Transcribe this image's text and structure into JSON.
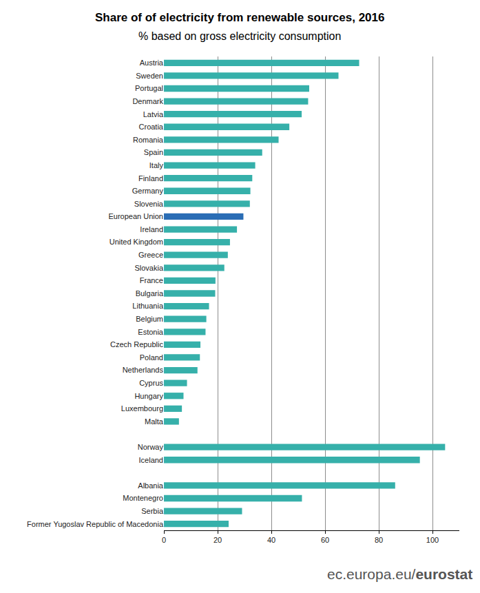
{
  "chart_data": {
    "type": "bar",
    "orientation": "horizontal",
    "title": "Share of of electricity from renewable sources, 2016",
    "subtitle": "% based on gross electricity consumption",
    "source": "ec.europa.eu/eurostat",
    "categories": [
      "Austria",
      "Sweden",
      "Portugal",
      "Denmark",
      "Latvia",
      "Croatia",
      "Romania",
      "Spain",
      "Italy",
      "Finland",
      "Germany",
      "Slovenia",
      "European Union",
      "Ireland",
      "United Kingdom",
      "Greece",
      "Slovakia",
      "France",
      "Bulgaria",
      "Lithuania",
      "Belgium",
      "Estonia",
      "Czech Republic",
      "Poland",
      "Netherlands",
      "Cyprus",
      "Hungary",
      "Luxembourg",
      "Malta",
      null,
      "Norway",
      "Iceland",
      null,
      "Albania",
      "Montenegro",
      "Serbia",
      "Former Yugoslav Republic of Macedonia"
    ],
    "values": [
      72.7,
      65.0,
      54.1,
      53.7,
      51.3,
      46.7,
      42.7,
      36.6,
      34.0,
      32.9,
      32.2,
      32.0,
      29.6,
      27.2,
      24.6,
      23.8,
      22.5,
      19.2,
      19.1,
      16.8,
      15.8,
      15.5,
      13.6,
      13.4,
      12.5,
      8.6,
      7.3,
      6.7,
      5.6,
      null,
      104.7,
      95.3,
      null,
      86.1,
      51.4,
      29.1,
      24.1
    ],
    "colors": [
      "#36b0aa",
      "#36b0aa",
      "#36b0aa",
      "#36b0aa",
      "#36b0aa",
      "#36b0aa",
      "#36b0aa",
      "#36b0aa",
      "#36b0aa",
      "#36b0aa",
      "#36b0aa",
      "#36b0aa",
      "#2a6db5",
      "#36b0aa",
      "#36b0aa",
      "#36b0aa",
      "#36b0aa",
      "#36b0aa",
      "#36b0aa",
      "#36b0aa",
      "#36b0aa",
      "#36b0aa",
      "#36b0aa",
      "#36b0aa",
      "#36b0aa",
      "#36b0aa",
      "#36b0aa",
      "#36b0aa",
      "#36b0aa",
      "#36b0aa",
      "#36b0aa",
      "#36b0aa",
      "#36b0aa",
      "#36b0aa",
      "#36b0aa",
      "#36b0aa",
      "#36b0aa"
    ],
    "xlim": [
      0,
      110
    ],
    "xticks": [
      0,
      20,
      40,
      60,
      80,
      100
    ],
    "grid": true
  }
}
